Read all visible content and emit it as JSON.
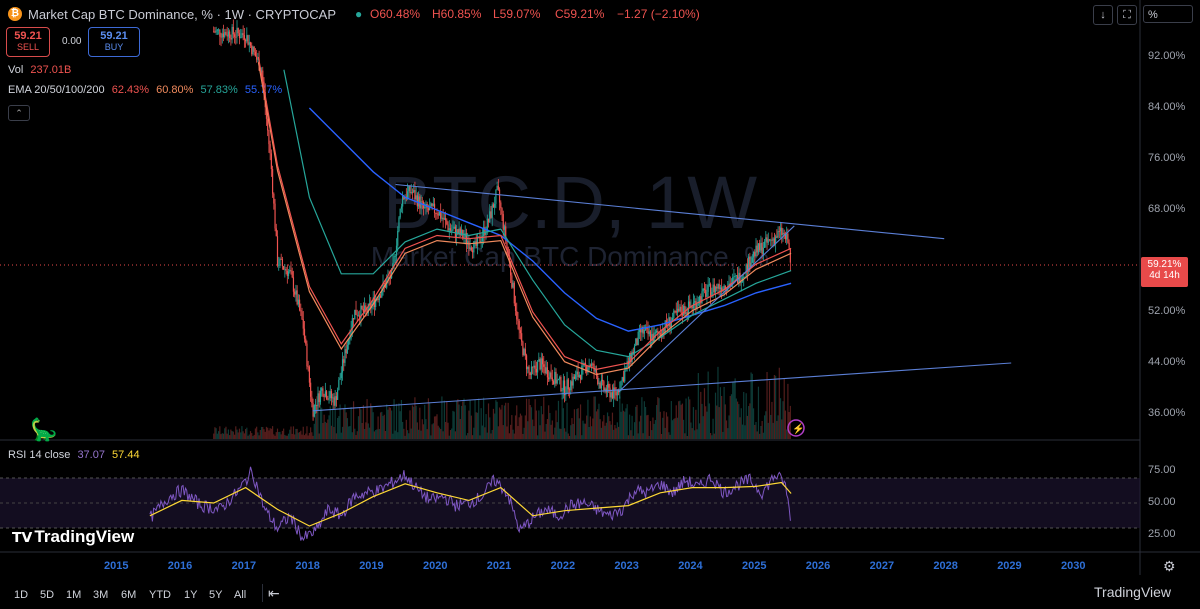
{
  "header": {
    "title": "Market Cap BTC Dominance, % · 1W · CRYPTOCAP",
    "logo_glyph": "₿",
    "open": "O60.48%",
    "high": "H60.85%",
    "low": "L59.07%",
    "close": "C59.21%",
    "change": "−1.27 (−2.10%)",
    "sell_value": "59.21",
    "sell_label": "SELL",
    "buy_value": "59.21",
    "buy_label": "BUY",
    "spread": "0.00",
    "vol_label": "Vol",
    "vol_value": "237.01B",
    "ema_label": "EMA 20/50/100/200",
    "ema20": "62.43%",
    "ema50": "60.80%",
    "ema100": "57.83%",
    "ema200": "55.77%",
    "collapse_glyph": "⌃",
    "percent_button": "%",
    "download_glyph": "↓",
    "fullscreen_glyph": "⛶"
  },
  "watermark": {
    "symbol": "BTC.D, 1W",
    "name": "Market Cap BTC Dominance, %"
  },
  "price_label": {
    "value": "59.21%",
    "countdown": "4d 14h"
  },
  "rsi": {
    "label": "RSI 14 close",
    "value": "37.07",
    "ma_value": "57.44",
    "upper": 70,
    "lower": 30
  },
  "brand": {
    "name": "TradingView",
    "corner": "TradingView"
  },
  "bottom_nav": [
    "1D",
    "5D",
    "1M",
    "3M",
    "6M",
    "YTD",
    "1Y",
    "5Y",
    "All"
  ],
  "colors": {
    "ema20": "#ef5350",
    "ema50": "#f08a5d",
    "ema100": "#26a69a",
    "ema200": "#2962ff",
    "trendline": "#5b7fd6",
    "rsi_line": "#7e57c2",
    "rsi_ma": "#fdd835",
    "up": "#26a69a",
    "down": "#ef5350"
  },
  "chart_data": {
    "type": "candlestick",
    "x_axis": [
      "2015",
      "2016",
      "2017",
      "2018",
      "2019",
      "2020",
      "2021",
      "2022",
      "2023",
      "2024",
      "2025",
      "2026",
      "2027",
      "2028",
      "2029",
      "2030"
    ],
    "y_ticks": [
      "92.00%",
      "84.00%",
      "76.00%",
      "68.00%",
      "52.00%",
      "44.00%",
      "36.00%"
    ],
    "y_range": [
      32,
      97
    ],
    "rsi_ticks": [
      "75.00",
      "50.00",
      "25.00"
    ],
    "rsi_range": [
      10,
      90
    ],
    "price_path": [
      [
        2016.5,
        96
      ],
      [
        2017.0,
        95.5
      ],
      [
        2017.25,
        90
      ],
      [
        2017.4,
        75
      ],
      [
        2017.5,
        60
      ],
      [
        2017.7,
        58
      ],
      [
        2017.9,
        50
      ],
      [
        2018.05,
        36.5
      ],
      [
        2018.2,
        40
      ],
      [
        2018.4,
        38
      ],
      [
        2018.55,
        45
      ],
      [
        2018.7,
        52
      ],
      [
        2018.9,
        52
      ],
      [
        2019.1,
        55
      ],
      [
        2019.3,
        58
      ],
      [
        2019.45,
        70
      ],
      [
        2019.6,
        71
      ],
      [
        2019.8,
        68
      ],
      [
        2020.0,
        68
      ],
      [
        2020.2,
        65
      ],
      [
        2020.4,
        64
      ],
      [
        2020.6,
        62
      ],
      [
        2020.8,
        66
      ],
      [
        2020.95,
        71
      ],
      [
        2021.1,
        62
      ],
      [
        2021.3,
        48
      ],
      [
        2021.45,
        42
      ],
      [
        2021.6,
        44
      ],
      [
        2021.8,
        42
      ],
      [
        2022.0,
        40
      ],
      [
        2022.2,
        42
      ],
      [
        2022.4,
        44
      ],
      [
        2022.6,
        40
      ],
      [
        2022.8,
        39
      ],
      [
        2023.0,
        44
      ],
      [
        2023.2,
        49
      ],
      [
        2023.4,
        48
      ],
      [
        2023.6,
        50
      ],
      [
        2023.8,
        52
      ],
      [
        2024.0,
        53
      ],
      [
        2024.2,
        55
      ],
      [
        2024.4,
        56
      ],
      [
        2024.6,
        56.5
      ],
      [
        2024.8,
        58
      ],
      [
        2024.95,
        61
      ],
      [
        2025.2,
        63
      ],
      [
        2025.4,
        64.5
      ],
      [
        2025.5,
        63
      ],
      [
        2025.55,
        59.21
      ]
    ],
    "ema_path": [
      [
        2017.2,
        92
      ],
      [
        2017.5,
        75
      ],
      [
        2018.0,
        56
      ],
      [
        2018.5,
        47
      ],
      [
        2019.0,
        54
      ],
      [
        2019.5,
        62
      ],
      [
        2020.0,
        64
      ],
      [
        2020.5,
        63.5
      ],
      [
        2021.0,
        64
      ],
      [
        2021.5,
        52
      ],
      [
        2022.0,
        45
      ],
      [
        2022.5,
        43
      ],
      [
        2023.0,
        44
      ],
      [
        2023.5,
        49
      ],
      [
        2024.0,
        53
      ],
      [
        2024.5,
        55.5
      ],
      [
        2025.0,
        59.5
      ],
      [
        2025.55,
        62
      ]
    ],
    "ema200_path": [
      [
        2018.0,
        84
      ],
      [
        2018.5,
        79
      ],
      [
        2019.0,
        74
      ],
      [
        2019.5,
        70
      ],
      [
        2020.0,
        68
      ],
      [
        2020.5,
        66
      ],
      [
        2021.0,
        64
      ],
      [
        2021.5,
        60
      ],
      [
        2022.0,
        55
      ],
      [
        2022.5,
        51
      ],
      [
        2023.0,
        49
      ],
      [
        2023.5,
        50
      ],
      [
        2024.0,
        51.5
      ],
      [
        2024.5,
        53
      ],
      [
        2025.0,
        55
      ],
      [
        2025.55,
        56.5
      ]
    ],
    "ema100_path": [
      [
        2017.6,
        90
      ],
      [
        2018.0,
        70
      ],
      [
        2018.5,
        58
      ],
      [
        2019.0,
        58
      ],
      [
        2019.5,
        63
      ],
      [
        2020.0,
        65
      ],
      [
        2020.5,
        64
      ],
      [
        2021.0,
        65
      ],
      [
        2021.5,
        57
      ],
      [
        2022.0,
        50
      ],
      [
        2022.5,
        46
      ],
      [
        2023.0,
        45
      ],
      [
        2023.5,
        48
      ],
      [
        2024.0,
        51.5
      ],
      [
        2024.5,
        54
      ],
      [
        2025.0,
        56.5
      ],
      [
        2025.55,
        58.5
      ]
    ],
    "trendlines": [
      {
        "from": [
          2019.35,
          72
        ],
        "to": [
          2027.95,
          63.5
        ]
      },
      {
        "from": [
          2018.05,
          36.5
        ],
        "to": [
          2029.0,
          44
        ]
      },
      {
        "from": [
          2022.85,
          39.5
        ],
        "to": [
          2025.6,
          65.5
        ]
      }
    ],
    "rsi_path": [
      [
        2015.5,
        38
      ],
      [
        2015.8,
        55
      ],
      [
        2016.0,
        60
      ],
      [
        2016.3,
        48
      ],
      [
        2016.6,
        45
      ],
      [
        2016.9,
        60
      ],
      [
        2017.1,
        75
      ],
      [
        2017.3,
        45
      ],
      [
        2017.5,
        30
      ],
      [
        2017.7,
        40
      ],
      [
        2017.9,
        22
      ],
      [
        2018.1,
        28
      ],
      [
        2018.3,
        45
      ],
      [
        2018.5,
        40
      ],
      [
        2018.7,
        55
      ],
      [
        2018.9,
        58
      ],
      [
        2019.1,
        60
      ],
      [
        2019.3,
        66
      ],
      [
        2019.5,
        72
      ],
      [
        2019.7,
        60
      ],
      [
        2019.9,
        52
      ],
      [
        2020.1,
        55
      ],
      [
        2020.3,
        48
      ],
      [
        2020.5,
        50
      ],
      [
        2020.7,
        55
      ],
      [
        2020.9,
        68
      ],
      [
        2021.1,
        58
      ],
      [
        2021.3,
        28
      ],
      [
        2021.5,
        38
      ],
      [
        2021.7,
        45
      ],
      [
        2021.9,
        40
      ],
      [
        2022.1,
        48
      ],
      [
        2022.3,
        50
      ],
      [
        2022.5,
        45
      ],
      [
        2022.7,
        40
      ],
      [
        2022.9,
        45
      ],
      [
        2023.1,
        60
      ],
      [
        2023.3,
        58
      ],
      [
        2023.5,
        65
      ],
      [
        2023.7,
        58
      ],
      [
        2023.9,
        68
      ],
      [
        2024.1,
        62
      ],
      [
        2024.3,
        70
      ],
      [
        2024.5,
        58
      ],
      [
        2024.7,
        64
      ],
      [
        2024.9,
        68
      ],
      [
        2025.1,
        58
      ],
      [
        2025.3,
        72
      ],
      [
        2025.45,
        66
      ],
      [
        2025.55,
        37
      ]
    ],
    "rsi_ma_path": [
      [
        2015.5,
        40
      ],
      [
        2016.0,
        52
      ],
      [
        2016.5,
        50
      ],
      [
        2017.0,
        62
      ],
      [
        2017.5,
        45
      ],
      [
        2018.0,
        32
      ],
      [
        2018.5,
        42
      ],
      [
        2019.0,
        55
      ],
      [
        2019.5,
        65
      ],
      [
        2020.0,
        58
      ],
      [
        2020.5,
        52
      ],
      [
        2021.0,
        62
      ],
      [
        2021.5,
        40
      ],
      [
        2022.0,
        44
      ],
      [
        2022.5,
        46
      ],
      [
        2023.0,
        48
      ],
      [
        2023.5,
        58
      ],
      [
        2024.0,
        62
      ],
      [
        2024.5,
        62
      ],
      [
        2025.0,
        63
      ],
      [
        2025.4,
        66
      ],
      [
        2025.55,
        57.44
      ]
    ]
  }
}
